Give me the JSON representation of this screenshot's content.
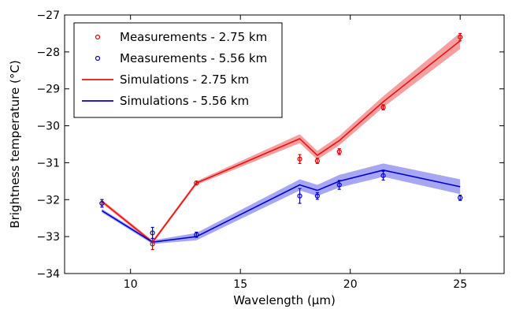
{
  "chart_data": {
    "type": "line",
    "title": "",
    "xlabel": "Wavelength (μm)",
    "ylabel": "Brightness temperature (°C)",
    "xlim": [
      7,
      27
    ],
    "ylim": [
      -34,
      -27
    ],
    "xticks": [
      10,
      15,
      20,
      25
    ],
    "yticks": [
      -34,
      -33,
      -32,
      -31,
      -30,
      -29,
      -28,
      -27
    ],
    "xtick_labels": [
      "10",
      "15",
      "20",
      "25"
    ],
    "ytick_labels": [
      "−34",
      "−33",
      "−32",
      "−31",
      "−30",
      "−29",
      "−28",
      "−27"
    ],
    "grid": false,
    "legend_position": "top-left",
    "series": [
      {
        "name": "Measurements - 2.75 km",
        "kind": "scatter",
        "color": "#e00000",
        "x": [
          8.7,
          11.0,
          13.0,
          17.7,
          18.5,
          19.5,
          21.5,
          25.0
        ],
        "y": [
          -32.1,
          -33.2,
          -31.55,
          -30.9,
          -30.95,
          -30.7,
          -29.5,
          -27.6
        ],
        "yerr": [
          0.1,
          0.15,
          0.05,
          0.12,
          0.07,
          0.08,
          0.07,
          0.1
        ]
      },
      {
        "name": "Measurements - 5.56 km",
        "kind": "scatter",
        "color": "#0000cc",
        "x": [
          8.7,
          11.0,
          13.0,
          17.7,
          18.5,
          19.5,
          21.5,
          25.0
        ],
        "y": [
          -32.1,
          -32.9,
          -32.95,
          -31.9,
          -31.9,
          -31.6,
          -31.35,
          -31.95
        ],
        "yerr": [
          0.1,
          0.15,
          0.07,
          0.2,
          0.09,
          0.12,
          0.12,
          0.07
        ]
      },
      {
        "name": "Simulations - 2.75 km",
        "kind": "line",
        "color": "#ee1111",
        "band_color": "#f08080",
        "x": [
          8.7,
          11.0,
          13.0,
          17.7,
          18.5,
          19.5,
          21.5,
          25.0
        ],
        "y": [
          -32.05,
          -33.15,
          -31.55,
          -30.35,
          -30.8,
          -30.4,
          -29.35,
          -27.7
        ],
        "band_halfwidth": [
          0.05,
          0.05,
          0.05,
          0.12,
          0.12,
          0.13,
          0.15,
          0.22
        ]
      },
      {
        "name": "Simulations - 5.56 km",
        "kind": "line",
        "color": "#0000cc",
        "band_color": "#8888ee",
        "x": [
          8.7,
          11.0,
          13.0,
          17.7,
          18.5,
          19.5,
          21.5,
          25.0
        ],
        "y": [
          -32.3,
          -33.15,
          -33.0,
          -31.6,
          -31.75,
          -31.5,
          -31.2,
          -31.65
        ],
        "band_halfwidth": [
          0.05,
          0.05,
          0.1,
          0.15,
          0.15,
          0.17,
          0.18,
          0.2
        ]
      }
    ]
  }
}
